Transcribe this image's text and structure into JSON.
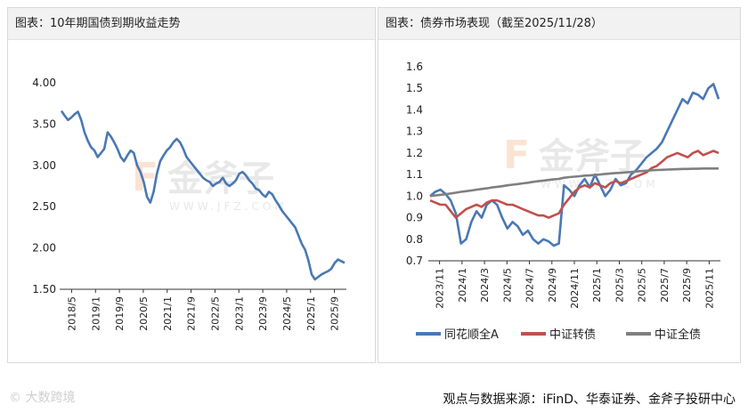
{
  "footer": {
    "source": "观点与数据来源：iFinD、华泰证券、金斧子投研中心",
    "logo_text": "大数跨境"
  },
  "watermark": {
    "brand": "金斧子",
    "url": "WWW.JFZ.COM"
  },
  "colors": {
    "blue": "#4a78b3",
    "red": "#c0504d",
    "gray": "#7f7f7f",
    "axis": "#333333"
  },
  "chart_data": [
    {
      "type": "line",
      "title": "图表：10年期国债到期收益走势",
      "x_ticks": [
        "2018/5",
        "2019/1",
        "2019/9",
        "2020/5",
        "2021/1",
        "2021/9",
        "2022/5",
        "2023/1",
        "2023/9",
        "2024/5",
        "2025/1",
        "2025/9"
      ],
      "y_ticks": [
        "4.00",
        "3.50",
        "3.00",
        "2.50",
        "2.00",
        "1.50"
      ],
      "ylim": [
        1.5,
        4.0
      ],
      "series": [
        {
          "color": "#4a78b3",
          "values": [
            3.66,
            3.6,
            3.55,
            3.58,
            3.62,
            3.65,
            3.55,
            3.4,
            3.3,
            3.22,
            3.18,
            3.1,
            3.15,
            3.2,
            3.4,
            3.35,
            3.28,
            3.2,
            3.1,
            3.05,
            3.12,
            3.18,
            3.15,
            3.0,
            2.92,
            2.8,
            2.62,
            2.55,
            2.68,
            2.9,
            3.05,
            3.12,
            3.18,
            3.22,
            3.28,
            3.32,
            3.28,
            3.2,
            3.1,
            3.05,
            3.0,
            2.95,
            2.9,
            2.85,
            2.82,
            2.8,
            2.75,
            2.78,
            2.8,
            2.85,
            2.78,
            2.75,
            2.78,
            2.82,
            2.9,
            2.92,
            2.88,
            2.82,
            2.78,
            2.72,
            2.7,
            2.65,
            2.62,
            2.68,
            2.65,
            2.58,
            2.52,
            2.45,
            2.4,
            2.35,
            2.3,
            2.25,
            2.15,
            2.05,
            1.98,
            1.85,
            1.68,
            1.62,
            1.65,
            1.68,
            1.7,
            1.72,
            1.75,
            1.82,
            1.86,
            1.84,
            1.82
          ]
        }
      ]
    },
    {
      "type": "line",
      "title": "图表：债券市场表现（截至2025/11/28）",
      "x_ticks": [
        "2023/11",
        "2024/1",
        "2024/3",
        "2024/5",
        "2024/7",
        "2024/9",
        "2024/11",
        "2025/1",
        "2025/3",
        "2025/5",
        "2025/7",
        "2025/9",
        "2025/11"
      ],
      "y_ticks": [
        "1.6",
        "1.5",
        "1.4",
        "1.3",
        "1.2",
        "1.1",
        "1.0",
        "0.9",
        "0.8",
        "0.7"
      ],
      "ylim": [
        0.7,
        1.6
      ],
      "legend_position": "bottom",
      "series": [
        {
          "name": "同花顺全A",
          "color": "#4a78b3",
          "values": [
            1.0,
            1.02,
            1.03,
            1.01,
            0.98,
            0.92,
            0.78,
            0.8,
            0.88,
            0.93,
            0.9,
            0.96,
            0.98,
            0.96,
            0.9,
            0.85,
            0.88,
            0.86,
            0.82,
            0.84,
            0.8,
            0.78,
            0.8,
            0.79,
            0.77,
            0.78,
            1.05,
            1.03,
            1.0,
            1.05,
            1.08,
            1.04,
            1.1,
            1.05,
            1.0,
            1.03,
            1.08,
            1.05,
            1.06,
            1.1,
            1.12,
            1.15,
            1.18,
            1.2,
            1.22,
            1.25,
            1.3,
            1.35,
            1.4,
            1.45,
            1.43,
            1.48,
            1.47,
            1.45,
            1.5,
            1.52,
            1.45
          ]
        },
        {
          "name": "中证转债",
          "color": "#c0504d",
          "values": [
            0.98,
            0.97,
            0.96,
            0.96,
            0.93,
            0.9,
            0.92,
            0.94,
            0.95,
            0.96,
            0.95,
            0.97,
            0.98,
            0.98,
            0.97,
            0.96,
            0.96,
            0.95,
            0.94,
            0.93,
            0.92,
            0.91,
            0.91,
            0.9,
            0.91,
            0.92,
            0.96,
            0.99,
            1.02,
            1.04,
            1.05,
            1.04,
            1.06,
            1.05,
            1.04,
            1.06,
            1.07,
            1.06,
            1.07,
            1.08,
            1.09,
            1.1,
            1.11,
            1.13,
            1.14,
            1.16,
            1.18,
            1.19,
            1.2,
            1.19,
            1.18,
            1.2,
            1.21,
            1.19,
            1.2,
            1.21,
            1.2
          ]
        },
        {
          "name": "中证全债",
          "color": "#7f7f7f",
          "values": [
            1.0,
            1.003,
            1.006,
            1.009,
            1.012,
            1.016,
            1.02,
            1.023,
            1.026,
            1.03,
            1.033,
            1.036,
            1.04,
            1.043,
            1.046,
            1.05,
            1.053,
            1.056,
            1.059,
            1.062,
            1.066,
            1.069,
            1.072,
            1.075,
            1.078,
            1.08,
            1.085,
            1.088,
            1.09,
            1.092,
            1.095,
            1.096,
            1.098,
            1.1,
            1.103,
            1.105,
            1.107,
            1.108,
            1.11,
            1.112,
            1.114,
            1.116,
            1.118,
            1.12,
            1.121,
            1.122,
            1.123,
            1.124,
            1.125,
            1.126,
            1.126,
            1.127,
            1.127,
            1.128,
            1.128,
            1.128,
            1.128
          ]
        }
      ]
    }
  ]
}
